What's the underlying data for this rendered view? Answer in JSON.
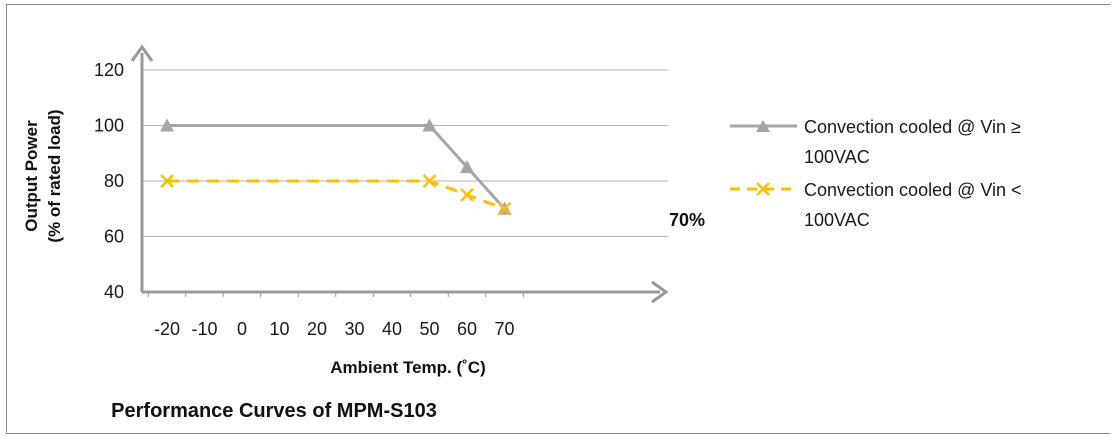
{
  "chart_data": {
    "type": "line",
    "title": "Performance Curves of MPM-S103",
    "xlabel": "Ambient Temp. (˚C)",
    "ylabel_lines": [
      "Output Power",
      "(% of rated load)"
    ],
    "categories": [
      "-20",
      "-10",
      "0",
      "10",
      "20",
      "30",
      "40",
      "50",
      "60",
      "70"
    ],
    "x": [
      -20,
      -10,
      0,
      10,
      20,
      30,
      40,
      50,
      60,
      70
    ],
    "ylim": [
      40,
      120
    ],
    "yticks": [
      40,
      60,
      80,
      100,
      120
    ],
    "grid": "horizontal",
    "legend_position": "right",
    "series": [
      {
        "name": "Convection cooled @ Vin ≥ 100VAC",
        "legend_lines": [
          "Convection cooled @ Vin ≥",
          "100VAC"
        ],
        "points": [
          [
            -20,
            100
          ],
          [
            50,
            100
          ],
          [
            60,
            85
          ],
          [
            70,
            70
          ]
        ],
        "marker": "triangle",
        "style": "solid",
        "color": "#a6a6a6"
      },
      {
        "name": "Convection cooled @ Vin < 100VAC",
        "legend_lines": [
          "Convection cooled @ Vin <",
          "100VAC"
        ],
        "points": [
          [
            -20,
            80
          ],
          [
            50,
            80
          ],
          [
            60,
            75
          ],
          [
            70,
            70
          ]
        ],
        "marker": "x",
        "style": "dashed",
        "color": "#ffc000"
      }
    ],
    "annotations": [
      {
        "text": "70%",
        "x": 70,
        "y": 70
      }
    ]
  }
}
